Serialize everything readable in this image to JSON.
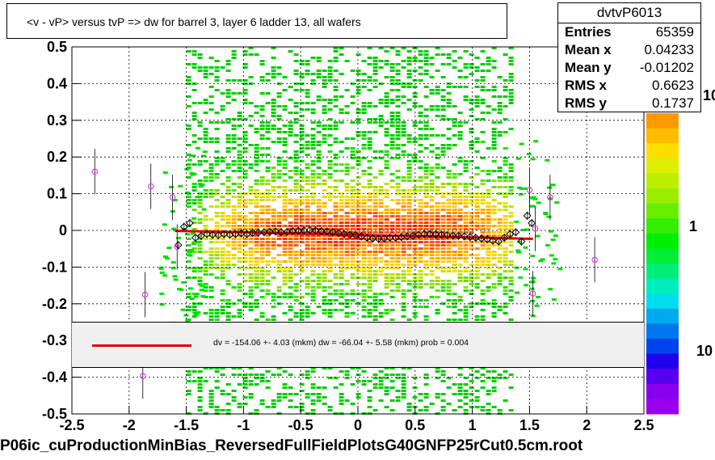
{
  "title": "<v - vP>       versus  tvP =>  dw for barrel 3, layer 6 ladder 13, all wafers",
  "stats": {
    "name": "dvtvP6013",
    "rows": [
      {
        "label": "Entries",
        "value": "65359"
      },
      {
        "label": "Mean x",
        "value": "0.04233"
      },
      {
        "label": "Mean y",
        "value": "-0.01202"
      },
      {
        "label": "RMS x",
        "value": "0.6623"
      },
      {
        "label": "RMS y",
        "value": "0.1737"
      }
    ]
  },
  "fit_text": "dv = -154.06 +-  4.03 (mkm) dw =  -66.04 +-  5.58 (mkm) prob = 0.004",
  "footer": "P06ic_cuProductionMinBias_ReversedFullFieldPlotsG40GNFP25rCut0.5cm.root",
  "colors": {
    "fit_line": "#e00000",
    "profile_marker": "#000000",
    "outlier_marker": "#e040e0"
  },
  "chart_data": {
    "type": "heatmap",
    "xlim": [
      -2.5,
      2.5
    ],
    "ylim": [
      -0.5,
      0.5
    ],
    "x_ticks": [
      "-2.5",
      "-2",
      "-1.5",
      "-1",
      "-0.5",
      "0",
      "0.5",
      "1",
      "1.5",
      "2",
      "2.5"
    ],
    "y_ticks": [
      "-0.5",
      "-0.4",
      "-0.3",
      "-0.2",
      "-0.1",
      "0",
      "0.1",
      "0.2",
      "0.3",
      "0.4",
      "0.5"
    ],
    "color_scale_labels": [
      "10",
      "1",
      "10"
    ],
    "grid": true,
    "fit_line": [
      [
        -1.6,
        -0.001
      ],
      [
        1.53,
        -0.023
      ]
    ],
    "profile_points": [
      [
        -1.57,
        -0.04
      ],
      [
        -1.52,
        0.01
      ],
      [
        -1.47,
        0.02
      ],
      [
        -1.42,
        -0.02
      ],
      [
        -1.37,
        -0.015
      ],
      [
        -1.32,
        -0.01
      ],
      [
        -1.27,
        -0.012
      ],
      [
        -1.22,
        -0.013
      ],
      [
        -1.17,
        -0.01
      ],
      [
        -1.12,
        -0.012
      ],
      [
        -1.07,
        -0.01
      ],
      [
        -1.02,
        -0.008
      ],
      [
        -0.97,
        -0.01
      ],
      [
        -0.92,
        -0.007
      ],
      [
        -0.87,
        -0.006
      ],
      [
        -0.82,
        -0.005
      ],
      [
        -0.77,
        -0.004
      ],
      [
        -0.72,
        -0.003
      ],
      [
        -0.67,
        -0.005
      ],
      [
        -0.62,
        -0.004
      ],
      [
        -0.57,
        -0.002
      ],
      [
        -0.52,
        -0.001
      ],
      [
        -0.47,
        0.0
      ],
      [
        -0.42,
        0.001
      ],
      [
        -0.37,
        0.0
      ],
      [
        -0.32,
        -0.002
      ],
      [
        -0.27,
        -0.003
      ],
      [
        -0.22,
        -0.005
      ],
      [
        -0.17,
        -0.007
      ],
      [
        -0.12,
        -0.01
      ],
      [
        -0.07,
        -0.012
      ],
      [
        -0.02,
        -0.013
      ],
      [
        0.03,
        -0.016
      ],
      [
        0.08,
        -0.02
      ],
      [
        0.13,
        -0.022
      ],
      [
        0.18,
        -0.023
      ],
      [
        0.23,
        -0.022
      ],
      [
        0.28,
        -0.02
      ],
      [
        0.33,
        -0.02
      ],
      [
        0.38,
        -0.018
      ],
      [
        0.43,
        -0.016
      ],
      [
        0.48,
        -0.015
      ],
      [
        0.53,
        -0.012
      ],
      [
        0.58,
        -0.01
      ],
      [
        0.63,
        -0.01
      ],
      [
        0.68,
        -0.011
      ],
      [
        0.73,
        -0.012
      ],
      [
        0.78,
        -0.013
      ],
      [
        0.83,
        -0.014
      ],
      [
        0.88,
        -0.015
      ],
      [
        0.93,
        -0.016
      ],
      [
        0.98,
        -0.018
      ],
      [
        1.03,
        -0.02
      ],
      [
        1.08,
        -0.022
      ],
      [
        1.13,
        -0.024
      ],
      [
        1.18,
        -0.028
      ],
      [
        1.23,
        -0.03
      ],
      [
        1.28,
        -0.02
      ],
      [
        1.33,
        -0.01
      ],
      [
        1.38,
        -0.005
      ],
      [
        1.43,
        -0.03
      ],
      [
        1.48,
        0.04
      ],
      [
        1.52,
        0.02
      ]
    ],
    "outlier_points": [
      [
        -2.3,
        0.16
      ],
      [
        -1.81,
        0.12
      ],
      [
        -1.86,
        -0.175
      ],
      [
        -1.62,
        0.09
      ],
      [
        -1.58,
        -0.045
      ],
      [
        -1.88,
        -0.397
      ],
      [
        1.5,
        0.11
      ],
      [
        1.55,
        0.005
      ],
      [
        1.53,
        -0.172
      ],
      [
        1.68,
        0.09
      ],
      [
        2.07,
        -0.08
      ]
    ]
  }
}
